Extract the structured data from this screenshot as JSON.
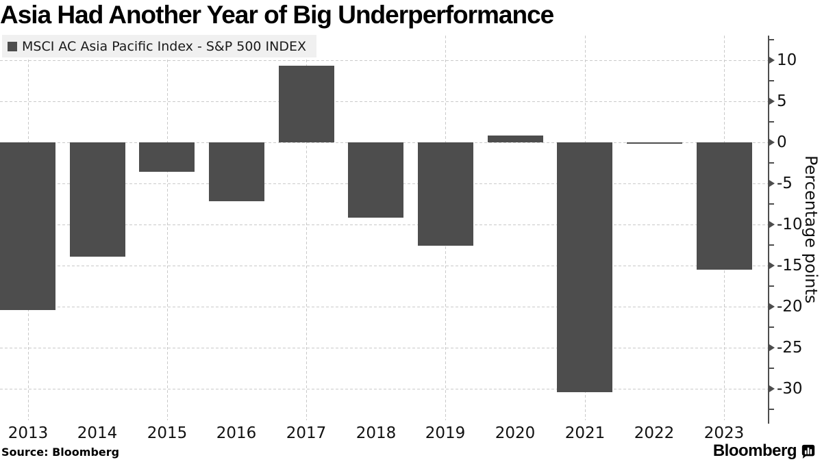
{
  "title": "Asia Had Another Year of Big Underperformance",
  "legend": {
    "label": "MSCI AC Asia Pacific Index - S&P 500 INDEX",
    "swatch_color": "#4d4d4d"
  },
  "source": "Source: Bloomberg",
  "branding": {
    "wordmark": "Bloomberg",
    "icon": "bloomberg-bubble-chart-icon"
  },
  "chart_data": {
    "type": "bar",
    "title": "Asia Had Another Year of Big Underperformance",
    "series_name": "MSCI AC Asia Pacific Index - S&P 500 INDEX",
    "categories": [
      "2013",
      "2014",
      "2015",
      "2016",
      "2017",
      "2018",
      "2019",
      "2020",
      "2021",
      "2022",
      "2023"
    ],
    "values": [
      -20.4,
      -13.9,
      -3.6,
      -7.2,
      9.3,
      -9.2,
      -12.6,
      0.8,
      -30.4,
      -0.2,
      -15.5
    ],
    "xlabel": "",
    "ylabel": "Percentage points",
    "ylim": [
      -34.25,
      13.0
    ],
    "yticks_major": [
      10,
      5,
      0,
      -5,
      -10,
      -15,
      -20,
      -25,
      -30
    ],
    "ytick_minor_step": 2.5,
    "grid": "dashed",
    "gridline_color": "#c9c9c9",
    "vertical_gridline_years": [
      "2013",
      "2015",
      "2017",
      "2019",
      "2021",
      "2023"
    ],
    "bar_color": "#4d4d4d",
    "axis_color": "#4d4d4d",
    "axis_side": "right",
    "legend_position": "top-left"
  }
}
